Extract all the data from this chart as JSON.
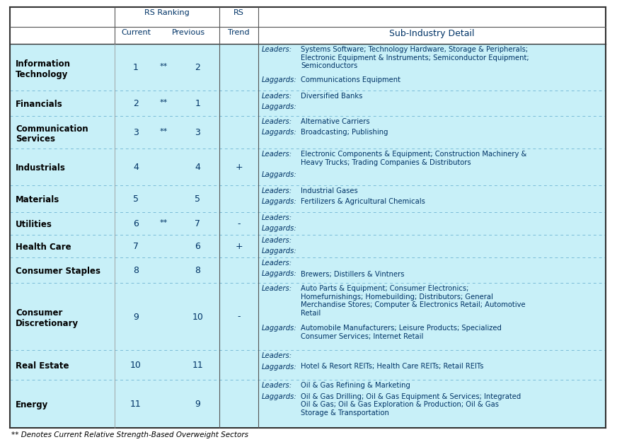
{
  "bg_color": "#FFFFFF",
  "cell_bg": "#C8F0F8",
  "header_bg": "#DAEEF3",
  "border_outer": "#555555",
  "border_inner_solid": "#888888",
  "border_dotted": "#888888",
  "footer_text": "** Denotes Current Relative Strength-Based Overweight Sectors",
  "sectors": [
    {
      "name": "Information\nTechnology",
      "current": "1",
      "stars": "**",
      "previous": "2",
      "trend": "",
      "leaders": "Systems Software; Technology Hardware, Storage & Peripherals;\nElectronic Equipment & Instruments; Semiconductor Equipment;\nSemiconductors",
      "laggards": "Communications Equipment"
    },
    {
      "name": "Financials",
      "current": "2",
      "stars": "**",
      "previous": "1",
      "trend": "",
      "leaders": "Diversified Banks",
      "laggards": ""
    },
    {
      "name": "Communication\nServices",
      "current": "3",
      "stars": "**",
      "previous": "3",
      "trend": "",
      "leaders": "Alternative Carriers",
      "laggards": "Broadcasting; Publishing"
    },
    {
      "name": "Industrials",
      "current": "4",
      "stars": "",
      "previous": "4",
      "trend": "+",
      "leaders": "Electronic Components & Equipment; Construction Machinery &\nHeavy Trucks; Trading Companies & Distributors",
      "laggards": ""
    },
    {
      "name": "Materials",
      "current": "5",
      "stars": "",
      "previous": "5",
      "trend": "",
      "leaders": "Industrial Gases",
      "laggards": "Fertilizers & Agricultural Chemicals"
    },
    {
      "name": "Utilities",
      "current": "6",
      "stars": "**",
      "previous": "7",
      "trend": "-",
      "leaders": "",
      "laggards": ""
    },
    {
      "name": "Health Care",
      "current": "7",
      "stars": "",
      "previous": "6",
      "trend": "+",
      "leaders": "",
      "laggards": ""
    },
    {
      "name": "Consumer Staples",
      "current": "8",
      "stars": "",
      "previous": "8",
      "trend": "",
      "leaders": "",
      "laggards": "Brewers; Distillers & Vintners"
    },
    {
      "name": "Consumer\nDiscretionary",
      "current": "9",
      "stars": "",
      "previous": "10",
      "trend": "-",
      "leaders": "Auto Parts & Equipment; Consumer Electronics;\nHomefurnishings; Homebuilding; Distributors; General\nMerchandise Stores; Computer & Electronics Retail; Automotive\nRetail",
      "laggards": "Automobile Manufacturers; Leisure Products; Specialized\nConsumer Services; Internet Retail"
    },
    {
      "name": "Real Estate",
      "current": "10",
      "stars": "",
      "previous": "11",
      "trend": "",
      "leaders": "",
      "laggards": "Hotel & Resort REITs; Health Care REITs; Retail REITs"
    },
    {
      "name": "Energy",
      "current": "11",
      "stars": "",
      "previous": "9",
      "trend": "",
      "leaders": "Oil & Gas Refining & Marketing",
      "laggards": "Oil & Gas Drilling; Oil & Gas Equipment & Services; Integrated\nOil & Gas; Oil & Gas Exploration & Production; Oil & Gas\nStorage & Transportation"
    }
  ]
}
